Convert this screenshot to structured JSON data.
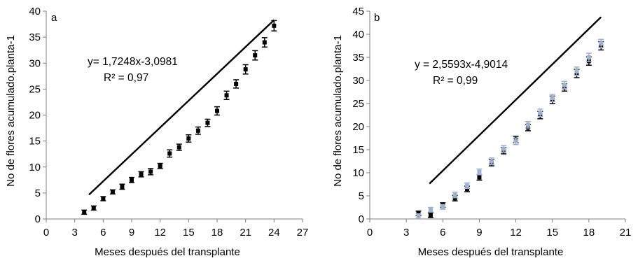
{
  "chart_data": [
    {
      "type": "scatter",
      "panel_label": "a",
      "xlabel": "Meses después del transplante",
      "ylabel": "No de flores acumulado.planta-1",
      "xlim": [
        0,
        27
      ],
      "ylim": [
        0,
        40
      ],
      "xticks": [
        0,
        3,
        6,
        9,
        12,
        15,
        18,
        21,
        24,
        27
      ],
      "yticks": [
        0,
        5,
        10,
        15,
        20,
        25,
        30,
        35,
        40
      ],
      "grid": false,
      "legend": "none",
      "equation": "y= 1,7248x-3,0981",
      "r2": "R² = 0,97",
      "trendline": {
        "slope": 1.7248,
        "intercept": -3.0981,
        "x_range": [
          4.5,
          24
        ]
      },
      "series": [
        {
          "points": [
            {
              "x": 4,
              "y": 1.3,
              "err": 0.4
            },
            {
              "x": 5,
              "y": 2.1,
              "err": 0.4
            },
            {
              "x": 6,
              "y": 3.9,
              "err": 0.4
            },
            {
              "x": 7,
              "y": 5.2,
              "err": 0.4
            },
            {
              "x": 8,
              "y": 6.2,
              "err": 0.5
            },
            {
              "x": 9,
              "y": 7.5,
              "err": 0.5
            },
            {
              "x": 10,
              "y": 8.6,
              "err": 0.5
            },
            {
              "x": 11,
              "y": 9.1,
              "err": 0.6
            },
            {
              "x": 12,
              "y": 10.2,
              "err": 0.5
            },
            {
              "x": 13,
              "y": 12.6,
              "err": 0.7
            },
            {
              "x": 14,
              "y": 13.8,
              "err": 0.6
            },
            {
              "x": 15,
              "y": 15.5,
              "err": 0.7
            },
            {
              "x": 16,
              "y": 17.0,
              "err": 0.7
            },
            {
              "x": 17,
              "y": 18.5,
              "err": 0.7
            },
            {
              "x": 18,
              "y": 20.8,
              "err": 0.8
            },
            {
              "x": 19,
              "y": 23.8,
              "err": 0.8
            },
            {
              "x": 20,
              "y": 26.0,
              "err": 0.8
            },
            {
              "x": 21,
              "y": 28.8,
              "err": 0.9
            },
            {
              "x": 22,
              "y": 31.5,
              "err": 0.9
            },
            {
              "x": 23,
              "y": 34.0,
              "err": 0.9
            },
            {
              "x": 24,
              "y": 37.2,
              "err": 1.0
            }
          ]
        }
      ]
    },
    {
      "type": "scatter",
      "panel_label": "b",
      "xlabel": "Meses después del transplante",
      "ylabel": "No de flores acumulado.planta-1",
      "xlim": [
        0,
        21
      ],
      "ylim": [
        0,
        45
      ],
      "xticks": [
        0,
        3,
        6,
        9,
        12,
        15,
        18,
        21
      ],
      "yticks": [
        0,
        5,
        10,
        15,
        20,
        25,
        30,
        35,
        40,
        45
      ],
      "grid": false,
      "legend": "none",
      "equation": "y = 2,5593x-4,9014",
      "r2": "R² = 0,99",
      "trendline": {
        "slope": 2.5593,
        "intercept": -4.9014,
        "x_range": [
          4.9,
          19
        ]
      },
      "series": [
        {
          "color": "#000000",
          "points": [
            {
              "x": 4,
              "y": 1.2,
              "err": 0.5
            },
            {
              "x": 5,
              "y": 0.8,
              "err": 0.5
            },
            {
              "x": 6,
              "y": 3.0,
              "err": 0.5
            },
            {
              "x": 7,
              "y": 4.5,
              "err": 0.6
            },
            {
              "x": 8,
              "y": 6.5,
              "err": 0.6
            },
            {
              "x": 9,
              "y": 9.0,
              "err": 0.6
            },
            {
              "x": 10,
              "y": 12.2,
              "err": 0.7
            },
            {
              "x": 11,
              "y": 14.8,
              "err": 0.7
            },
            {
              "x": 12,
              "y": 17.2,
              "err": 0.7
            },
            {
              "x": 13,
              "y": 19.8,
              "err": 0.7
            },
            {
              "x": 14,
              "y": 22.5,
              "err": 0.8
            },
            {
              "x": 15,
              "y": 25.8,
              "err": 0.8
            },
            {
              "x": 16,
              "y": 28.5,
              "err": 0.8
            },
            {
              "x": 17,
              "y": 31.5,
              "err": 0.9
            },
            {
              "x": 18,
              "y": 34.2,
              "err": 0.9
            },
            {
              "x": 19,
              "y": 37.5,
              "err": 0.9
            }
          ]
        },
        {
          "color": "#9fb3d1",
          "points": [
            {
              "x": 4,
              "y": 0.6,
              "err": 0.5
            },
            {
              "x": 5,
              "y": 2.0,
              "err": 0.5
            },
            {
              "x": 6,
              "y": 2.6,
              "err": 0.5
            },
            {
              "x": 7,
              "y": 5.2,
              "err": 0.6
            },
            {
              "x": 8,
              "y": 7.2,
              "err": 0.6
            },
            {
              "x": 9,
              "y": 10.2,
              "err": 0.6
            },
            {
              "x": 10,
              "y": 12.5,
              "err": 0.7
            },
            {
              "x": 11,
              "y": 15.2,
              "err": 0.7
            },
            {
              "x": 12,
              "y": 16.8,
              "err": 0.7
            },
            {
              "x": 13,
              "y": 20.4,
              "err": 0.7
            },
            {
              "x": 14,
              "y": 23.0,
              "err": 0.8
            },
            {
              "x": 15,
              "y": 26.2,
              "err": 0.8
            },
            {
              "x": 16,
              "y": 29.0,
              "err": 0.8
            },
            {
              "x": 17,
              "y": 32.0,
              "err": 0.9
            },
            {
              "x": 18,
              "y": 35.0,
              "err": 0.9
            },
            {
              "x": 19,
              "y": 38.0,
              "err": 0.9
            }
          ]
        }
      ]
    }
  ]
}
